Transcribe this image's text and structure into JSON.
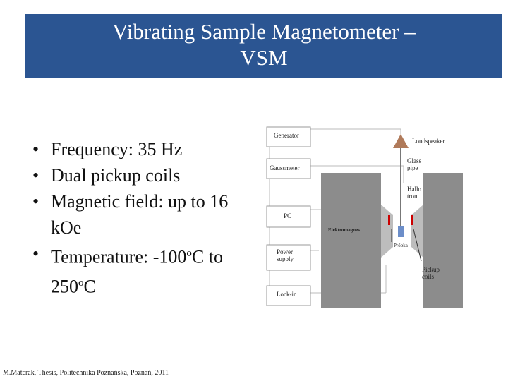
{
  "header": {
    "title_lines": [
      "Vibrating Sample Magnetometer –",
      "VSM"
    ]
  },
  "bullets": [
    "Frequency: 35 Hz",
    "Dual pickup coils",
    "Magnetic field: up to 16 kOe",
    [
      "Temperature: -100",
      "o",
      "C to 250",
      "o",
      "C"
    ]
  ],
  "diagram": {
    "labels": {
      "generator": "Generator",
      "gaussmeter": "Gaussmeter",
      "pc": "PC",
      "power_supply": "Power supply",
      "lock_in": "Lock-in",
      "loudspeaker": "Loudspeaker",
      "glass_pipe": "Glass pipe",
      "hallotron": "Hallo tron",
      "electromagnet": "Elektromagnes",
      "sample": "Próbka",
      "pickup_coils": "Pickup coils"
    }
  },
  "footer": "M.Matcrak, Thesis, Politechnika Poznańska, Poznań, 2011"
}
